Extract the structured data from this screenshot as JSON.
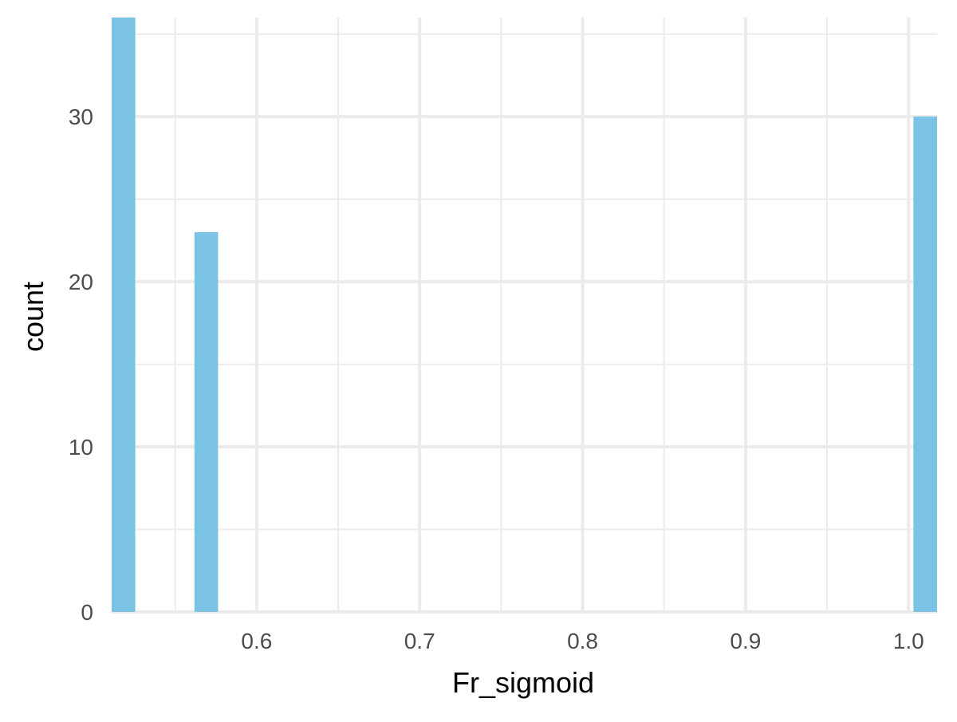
{
  "chart_data": {
    "type": "bar",
    "title": "",
    "xlabel": "Fr_sigmoid",
    "ylabel": "count",
    "x_ticks": [
      "0.6",
      "0.7",
      "0.8",
      "0.9",
      "1.0"
    ],
    "x_tick_values": [
      0.6,
      0.7,
      0.8,
      0.9,
      1.0
    ],
    "y_ticks": [
      "0",
      "10",
      "20",
      "30"
    ],
    "y_tick_values": [
      0,
      10,
      20,
      30
    ],
    "xlim": [
      0.511,
      1.0175
    ],
    "ylim": [
      0,
      36
    ],
    "bars": [
      {
        "x0": 0.511,
        "x1": 0.5255,
        "count": 36
      },
      {
        "x0": 0.5618,
        "x1": 0.5763,
        "count": 23
      },
      {
        "x0": 1.003,
        "x1": 1.0175,
        "count": 30
      }
    ],
    "grid": true,
    "bar_color": "#7AC3E4",
    "grid_color": "#EBEBEB",
    "text_color": "#4D4D4D"
  }
}
